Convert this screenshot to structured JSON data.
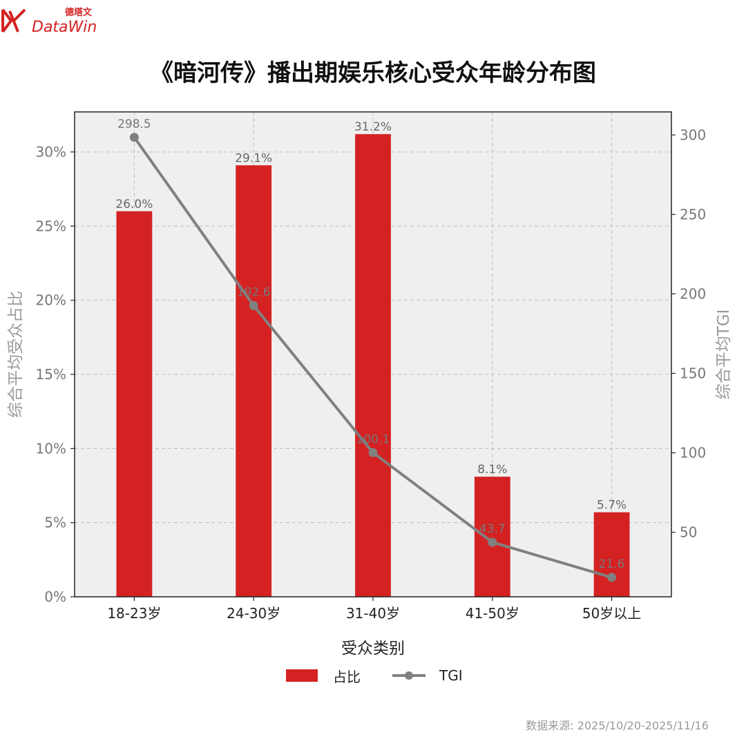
{
  "brand": {
    "name": "DataWin",
    "cn_name": "德塔文",
    "red": "#d42222"
  },
  "chart_data": {
    "type": "bar",
    "title": "《暗河传》播出期娱乐核心受众年龄分布图",
    "xlabel": "受众类别",
    "ylabel": "综合平均受众占比",
    "y2label": "综合平均TGI",
    "categories": [
      "18-23岁",
      "24-30岁",
      "31-40岁",
      "41-50岁",
      "50岁以上"
    ],
    "series": [
      {
        "name": "占比",
        "kind": "bar",
        "axis": "left",
        "values": [
          26.0,
          29.1,
          31.2,
          8.1,
          5.7
        ],
        "labels": [
          "26.0%",
          "29.1%",
          "31.2%",
          "8.1%",
          "5.7%"
        ],
        "color": "#d42222"
      },
      {
        "name": "TGI",
        "kind": "line",
        "axis": "right",
        "values": [
          298.5,
          192.6,
          100.1,
          43.7,
          21.6
        ],
        "labels": [
          "298.5",
          "192.6",
          "100.1",
          "43.7",
          "21.6"
        ],
        "color": "#808080"
      }
    ],
    "ylim": [
      0,
      32.7
    ],
    "y2lim": [
      9.4,
      314.5
    ],
    "yticks": [
      0,
      5,
      10,
      15,
      20,
      25,
      30
    ],
    "yticklabels": [
      "0%",
      "5%",
      "10%",
      "15%",
      "20%",
      "25%",
      "30%"
    ],
    "y2ticks": [
      50,
      100,
      150,
      200,
      250,
      300
    ],
    "y2ticklabels": [
      "50",
      "100",
      "150",
      "200",
      "250",
      "300"
    ],
    "grid": true,
    "legend_position": "bottom-center",
    "plot_background": "#efefef"
  },
  "legend": {
    "bar_label": "占比",
    "line_label": "TGI"
  },
  "source": "数据来源: 2025/10/20-2025/11/16"
}
